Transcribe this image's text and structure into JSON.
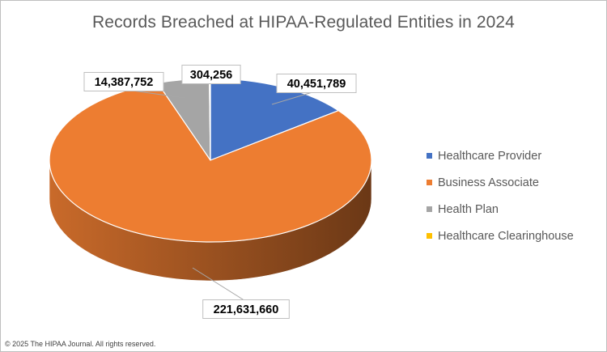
{
  "chart_data": {
    "type": "pie",
    "title": "Records Breached at HIPAA-Regulated Entities in 2024",
    "categories": [
      "Healthcare Provider",
      "Business Associate",
      "Health Plan",
      "Healthcare Clearinghouse"
    ],
    "values": [
      40451789,
      221631660,
      14387752,
      304256
    ],
    "data_labels": [
      "40,451,789",
      "221,631,660",
      "14,387,752",
      "304,256"
    ],
    "colors": [
      "#4472C4",
      "#ED7D31",
      "#A5A5A5",
      "#FFC000"
    ],
    "style": "3d",
    "legend_position": "right"
  },
  "footer": "© 2025 The HIPAA Journal. All rights reserved."
}
